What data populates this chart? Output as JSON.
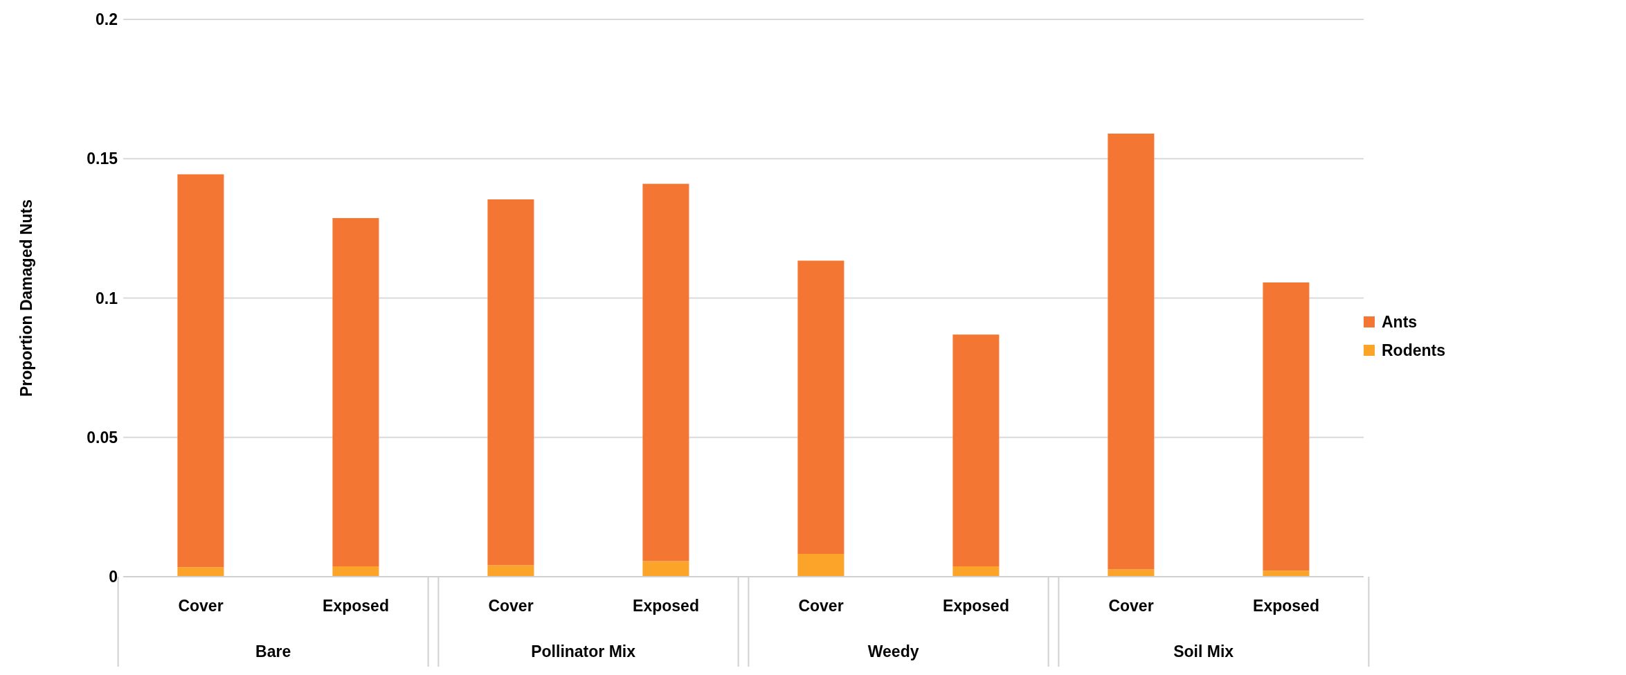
{
  "chart_data": {
    "type": "bar",
    "stacked": true,
    "ylabel": "Proportion Damaged Nuts",
    "categories": [
      "Cover",
      "Exposed",
      "Cover",
      "Exposed",
      "Cover",
      "Exposed",
      "Cover",
      "Exposed"
    ],
    "series": [
      {
        "name": "Rodents",
        "color": "#fca32a",
        "values": [
          0.0034,
          0.0037,
          0.0041,
          0.0056,
          0.0082,
          0.0037,
          0.0026,
          0.0022
        ]
      },
      {
        "name": "Ants",
        "color": "#f37732",
        "values": [
          0.141,
          0.125,
          0.1313,
          0.1354,
          0.1052,
          0.0832,
          0.1564,
          0.1034
        ]
      }
    ],
    "annotations": [
      "Bare",
      "Pollinator Mix",
      "Weedy",
      "Soil Mix"
    ],
    "ylim": [
      0,
      0.2
    ],
    "yticks": [
      0,
      0.05,
      0.1,
      0.15,
      0.2
    ],
    "grid": "y",
    "legend": "right"
  }
}
